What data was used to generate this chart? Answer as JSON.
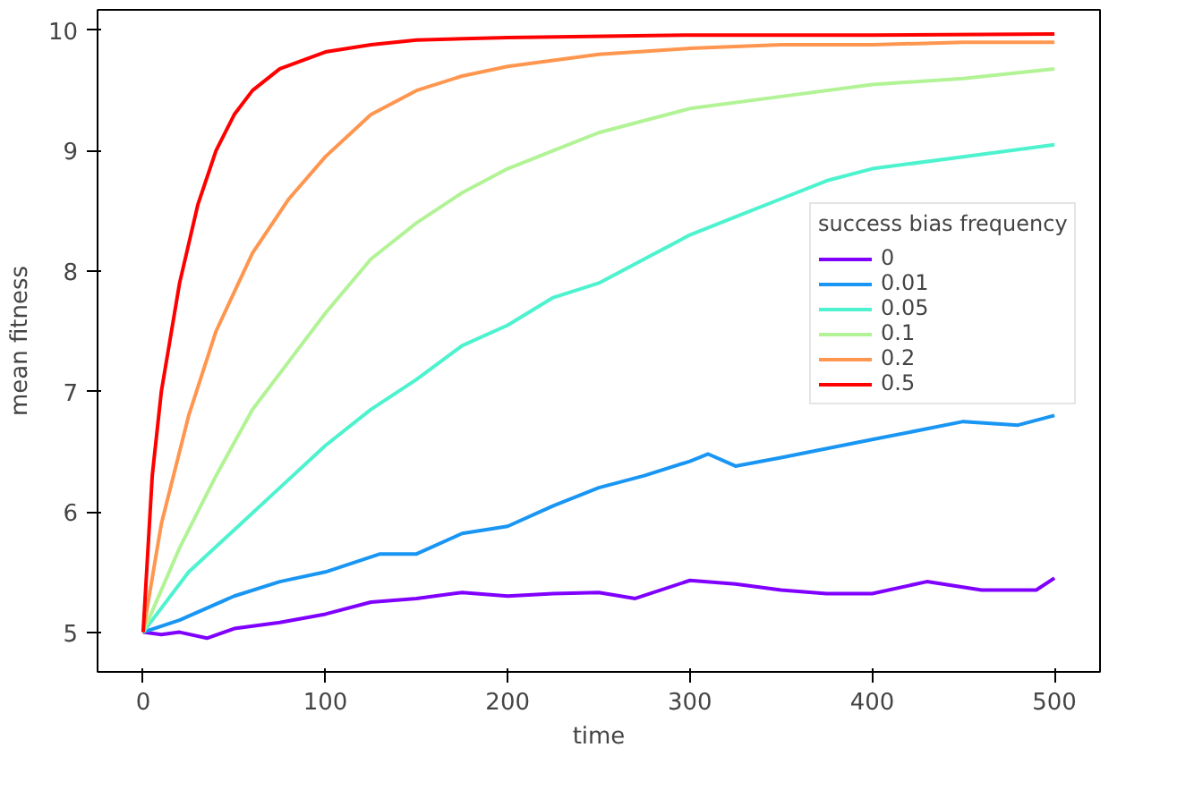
{
  "chart_data": {
    "type": "line",
    "xlabel": "time",
    "ylabel": "mean fitness",
    "legend_title": "success bias frequency",
    "legend": "right",
    "grid": false,
    "xlim": [
      -25,
      525
    ],
    "ylim": [
      4.67,
      10.17
    ],
    "xticks": [
      0,
      100,
      200,
      300,
      400,
      500
    ],
    "yticks": [
      5,
      6,
      7,
      8,
      9,
      10
    ],
    "series": [
      {
        "name": "0",
        "color": "#8000ff",
        "x": [
          0,
          10,
          20,
          35,
          50,
          75,
          100,
          125,
          150,
          175,
          200,
          225,
          250,
          270,
          300,
          325,
          350,
          375,
          400,
          430,
          460,
          490,
          500
        ],
        "values": [
          5.0,
          4.98,
          5.0,
          4.95,
          5.03,
          5.08,
          5.15,
          5.25,
          5.28,
          5.33,
          5.3,
          5.32,
          5.33,
          5.28,
          5.43,
          5.4,
          5.35,
          5.32,
          5.32,
          5.42,
          5.35,
          5.35,
          5.45
        ]
      },
      {
        "name": "0.01",
        "color": "#1996f3",
        "x": [
          0,
          20,
          50,
          75,
          100,
          130,
          150,
          175,
          200,
          225,
          250,
          275,
          300,
          310,
          325,
          350,
          400,
          450,
          480,
          500
        ],
        "values": [
          5.0,
          5.1,
          5.3,
          5.42,
          5.5,
          5.65,
          5.65,
          5.82,
          5.88,
          6.05,
          6.2,
          6.3,
          6.42,
          6.48,
          6.38,
          6.45,
          6.6,
          6.75,
          6.72,
          6.8
        ]
      },
      {
        "name": "0.05",
        "color": "#4df3ce",
        "x": [
          0,
          25,
          50,
          75,
          100,
          125,
          150,
          175,
          200,
          225,
          250,
          275,
          300,
          325,
          350,
          375,
          400,
          450,
          500
        ],
        "values": [
          5.0,
          5.5,
          5.85,
          6.2,
          6.55,
          6.85,
          7.1,
          7.38,
          7.55,
          7.78,
          7.9,
          8.1,
          8.3,
          8.45,
          8.6,
          8.75,
          8.85,
          8.95,
          9.05
        ]
      },
      {
        "name": "0.1",
        "color": "#b2f396",
        "x": [
          0,
          20,
          40,
          60,
          80,
          100,
          125,
          150,
          175,
          200,
          225,
          250,
          275,
          300,
          350,
          400,
          450,
          500
        ],
        "values": [
          5.0,
          5.7,
          6.3,
          6.85,
          7.25,
          7.65,
          8.1,
          8.4,
          8.65,
          8.85,
          9.0,
          9.15,
          9.25,
          9.35,
          9.45,
          9.55,
          9.6,
          9.68
        ]
      },
      {
        "name": "0.2",
        "color": "#ff964f",
        "x": [
          0,
          10,
          25,
          40,
          60,
          80,
          100,
          125,
          150,
          175,
          200,
          250,
          300,
          350,
          400,
          450,
          500
        ],
        "values": [
          5.0,
          5.9,
          6.8,
          7.5,
          8.15,
          8.6,
          8.95,
          9.3,
          9.5,
          9.62,
          9.7,
          9.8,
          9.85,
          9.88,
          9.88,
          9.9,
          9.9
        ]
      },
      {
        "name": "0.5",
        "color": "#ff0000",
        "x": [
          0,
          5,
          10,
          20,
          30,
          40,
          50,
          60,
          75,
          100,
          125,
          150,
          200,
          300,
          400,
          500
        ],
        "values": [
          5.0,
          6.3,
          7.0,
          7.9,
          8.55,
          9.0,
          9.3,
          9.5,
          9.68,
          9.82,
          9.88,
          9.92,
          9.94,
          9.96,
          9.96,
          9.97
        ]
      }
    ]
  }
}
